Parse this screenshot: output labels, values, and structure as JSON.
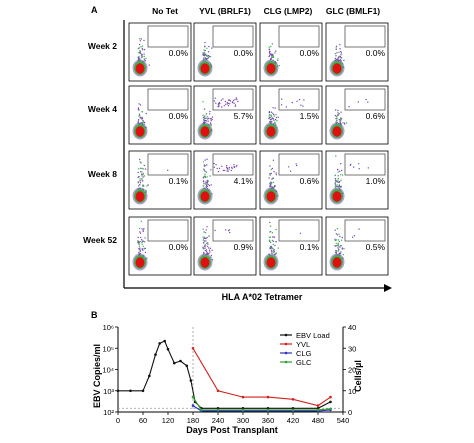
{
  "panel_a": {
    "label": "A",
    "columns": [
      "No Tet",
      "YVL (BRLF1)",
      "CLG (LMP2)",
      "GLC (BMLF1)"
    ],
    "rows": [
      "Week 2",
      "Week 4",
      "Week 8",
      "Week 52"
    ],
    "percentages": [
      [
        "0.0%",
        "0.0%",
        "0.0%",
        "0.0%"
      ],
      [
        "0.0%",
        "5.7%",
        "1.5%",
        "0.6%"
      ],
      [
        "0.1%",
        "4.1%",
        "0.6%",
        "1.0%"
      ],
      [
        "0.0%",
        "0.9%",
        "0.1%",
        "0.5%"
      ]
    ],
    "x_axis_label": "HLA A*02 Tetramer",
    "colors": {
      "background_events": "#7a4fb0",
      "mid_events": "#3fb050",
      "core_events": "#e01010"
    }
  },
  "panel_b": {
    "label": "B",
    "chart_data": {
      "type": "line",
      "xlabel": "Days Post Transplant",
      "ylabel_left": "EBV Copies/ml",
      "ylabel_right": "Cells/µl",
      "x_ticks": [
        "0",
        "60",
        "120",
        "180",
        "240",
        "300",
        "360",
        "420",
        "480",
        "540"
      ],
      "xlim": [
        0,
        540
      ],
      "y_left_ticks": [
        "10²",
        "10³",
        "10⁴",
        "10⁵",
        "10⁶"
      ],
      "y_left_scale": "log",
      "ylim_left": [
        100,
        1000000
      ],
      "y_right_ticks": [
        "0",
        "10",
        "20",
        "30",
        "40"
      ],
      "ylim_right": [
        0,
        40
      ],
      "legend_position": "top-right",
      "series": [
        {
          "name": "EBV Load",
          "axis": "left",
          "color": "#111111",
          "x": [
            0,
            30,
            60,
            75,
            90,
            100,
            112,
            120,
            135,
            150,
            165,
            175,
            185,
            200,
            240,
            300,
            360,
            420,
            480,
            510
          ],
          "y": [
            1000,
            1000,
            1000,
            5000,
            50000,
            170000,
            220000,
            90000,
            20000,
            25000,
            15000,
            3000,
            300,
            150,
            150,
            150,
            150,
            150,
            150,
            300
          ]
        },
        {
          "name": "YVL",
          "axis": "right",
          "color": "#d42020",
          "x": [
            180,
            240,
            300,
            360,
            420,
            480,
            510
          ],
          "y": [
            30,
            10,
            7,
            7,
            6,
            3,
            7
          ]
        },
        {
          "name": "CLG",
          "axis": "right",
          "color": "#3030c0",
          "x": [
            180,
            200,
            240,
            300,
            360,
            420,
            480,
            510
          ],
          "y": [
            3,
            0.5,
            0.5,
            0.5,
            0.5,
            0.5,
            0.5,
            1
          ]
        },
        {
          "name": "GLC",
          "axis": "right",
          "color": "#30a030",
          "x": [
            180,
            200,
            240,
            300,
            360,
            420,
            480,
            510
          ],
          "y": [
            7,
            1,
            1,
            1,
            1,
            1,
            1,
            1.5
          ]
        }
      ]
    }
  }
}
